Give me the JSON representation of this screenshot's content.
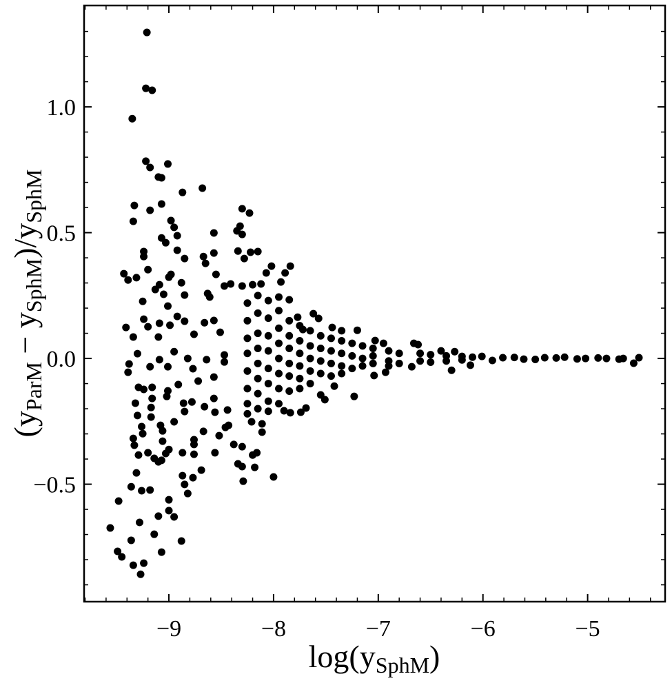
{
  "chart_data": {
    "type": "scatter",
    "color": "#000000",
    "xlabel": [
      "log(y",
      "SphM",
      ")"
    ],
    "ylabel": [
      "(y",
      "ParM",
      " − y",
      "SphM",
      ")/y",
      "SphM"
    ],
    "xlim": [
      -9.81,
      -4.26
    ],
    "ylim": [
      -0.967,
      1.403
    ],
    "xticks": [
      {
        "value": -9,
        "label": "−9"
      },
      {
        "value": -8,
        "label": "−8"
      },
      {
        "value": -7,
        "label": "−7"
      },
      {
        "value": -6,
        "label": "−6"
      },
      {
        "value": -5,
        "label": "−5"
      }
    ],
    "yticks": [
      {
        "value": -0.5,
        "label": "−0.5"
      },
      {
        "value": 0,
        "label": "0.0"
      },
      0.5,
      {
        "value": 1,
        "label": "1.0"
      }
    ],
    "xticks_minor": [
      -9.8,
      -9.6,
      -9.4,
      -9.2,
      -8.8,
      -8.6,
      -8.4,
      -8.2,
      -7.8,
      -7.6,
      -7.4,
      -7.2,
      -6.8,
      -6.6,
      -6.4,
      -6.2,
      -5.8,
      -5.6,
      -5.4,
      -5.2,
      -4.8,
      -4.6,
      -4.4
    ],
    "yticks_minor": [
      -0.9,
      -0.8,
      -0.7,
      -0.6,
      -0.4,
      -0.3,
      -0.2,
      -0.1,
      0.1,
      0.2,
      0.3,
      0.4,
      0.6,
      0.7,
      0.8,
      0.9,
      1.1,
      1.2,
      1.3
    ],
    "x": [
      -9.21,
      -9.22,
      -9.16,
      -9.35,
      -9.22,
      -9.18,
      -9.01,
      -9.1,
      -9.07,
      -9.33,
      -9.07,
      -9.18,
      -8.87,
      -8.68,
      -9.34,
      -8.98,
      -8.95,
      -9.24,
      -9.24,
      -9.07,
      -9.03,
      -8.92,
      -8.92,
      -8.85,
      -8.67,
      -8.57,
      -8.65,
      -8.3,
      -8.23,
      -8.32,
      -8.35,
      -8.3,
      -8.34,
      -8.28,
      -8.22,
      -8.15,
      -8.02,
      -8.07,
      -8.55,
      -8.57,
      -9.43,
      -9.39,
      -9.31,
      -9.2,
      -9.09,
      -9.0,
      -8.98,
      -8.88,
      -9.13,
      -9.05,
      -8.85,
      -8.63,
      -8.61,
      -8.47,
      -8.41,
      -9.01,
      -9.25,
      -9.41,
      -9.24,
      -9.2,
      -9.09,
      -8.99,
      -8.92,
      -8.85,
      -8.66,
      -8.57,
      -9.34,
      -9.1,
      -8.76,
      -8.51,
      -9.3,
      -9.09,
      -8.95,
      -8.82,
      -8.64,
      -8.47,
      -9.38,
      -9.18,
      -9.01,
      -9.39,
      -8.77,
      -8.57,
      -8.47,
      -9.29,
      -9.24,
      -9.16,
      -9.01,
      -9.02,
      -9.16,
      -8.91,
      -8.72,
      -8.57,
      -9.32,
      -9.3,
      -9.17,
      -9.17,
      -8.86,
      -8.78,
      -8.66,
      -8.56,
      -8.44,
      -9.26,
      -9.08,
      -8.95,
      -8.85,
      -8.43,
      -9.34,
      -9.33,
      -9.25,
      -9.06,
      -9.06,
      -8.76,
      -8.67,
      -8.52,
      -8.46,
      -9.29,
      -9.2,
      -9.14,
      -9.1,
      -9.07,
      -9.03,
      -9.0,
      -8.87,
      -8.76,
      -8.76,
      -8.56,
      -8.38,
      -8.3,
      -8.34,
      -8.3,
      -8.18,
      -8.2,
      -8.16,
      -8.29,
      -8.0,
      -9.31,
      -9.36,
      -9.26,
      -9.18,
      -8.87,
      -8.85,
      -8.82,
      -8.77,
      -8.69,
      -9.48,
      -9.0,
      -8.95,
      -9.1,
      -9.0,
      -9.28,
      -9.56,
      -9.14,
      -9.36,
      -8.88,
      -9.49,
      -9.07,
      -9.45,
      -9.24,
      -9.34,
      -9.27,
      -8.3,
      -8.2,
      -8.12,
      -7.93,
      -7.89,
      -7.84,
      -7.95,
      -7.85,
      -7.77,
      -7.72,
      -7.62,
      -7.57,
      -7.44,
      -7.35,
      -7.2,
      -7.03,
      -6.95,
      -6.66,
      -6.62,
      -6.4,
      -6.27,
      -8.11,
      -8.11,
      -8.21,
      -7.9,
      -7.84,
      -7.74,
      -7.69,
      -7.55,
      -7.51,
      -7.42,
      -7.23,
      -7.04,
      -6.93,
      -6.68,
      -6.3,
      -6.12,
      -4.51,
      -4.56,
      -4.66,
      -4.82,
      -5.02,
      -5.22,
      -5.41,
      -5.61,
      -5.81,
      -6.01,
      -5.91,
      -8.25,
      -8.25,
      -8.25,
      -8.25,
      -8.25,
      -8.25,
      -8.25,
      -8.25,
      -8.15,
      -8.15,
      -8.15,
      -8.15,
      -8.15,
      -8.15,
      -8.15,
      -8.15,
      -8.05,
      -8.05,
      -8.05,
      -8.05,
      -8.05,
      -8.05,
      -8.05,
      -8.05,
      -7.95,
      -7.95,
      -7.95,
      -7.95,
      -7.95,
      -7.95,
      -7.95,
      -7.85,
      -7.85,
      -7.85,
      -7.85,
      -7.85,
      -7.85,
      -7.75,
      -7.75,
      -7.75,
      -7.75,
      -7.75,
      -7.75,
      -7.65,
      -7.65,
      -7.65,
      -7.65,
      -7.65,
      -7.55,
      -7.55,
      -7.55,
      -7.55,
      -7.45,
      -7.45,
      -7.45,
      -7.45,
      -7.35,
      -7.35,
      -7.35,
      -7.35,
      -7.25,
      -7.25,
      -7.25,
      -7.15,
      -7.15,
      -7.15,
      -7.05,
      -7.05,
      -7.05,
      -6.9,
      -6.9,
      -6.9,
      -6.8,
      -6.8,
      -6.6,
      -6.6,
      -6.5,
      -6.5,
      -6.35,
      -6.35,
      -6.2,
      -6.2,
      -6.1,
      -5.7,
      -5.5,
      -5.3,
      -5.1,
      -4.9,
      -4.7
    ],
    "values": [
      1.296,
      1.074,
      1.066,
      0.953,
      0.784,
      0.759,
      0.773,
      0.721,
      0.718,
      0.608,
      0.614,
      0.589,
      0.66,
      0.677,
      0.545,
      0.548,
      0.521,
      0.425,
      0.405,
      0.479,
      0.46,
      0.488,
      0.43,
      0.397,
      0.405,
      0.499,
      0.378,
      0.595,
      0.578,
      0.526,
      0.507,
      0.493,
      0.427,
      0.397,
      0.422,
      0.425,
      0.367,
      0.34,
      0.334,
      0.419,
      0.337,
      0.312,
      0.321,
      0.353,
      0.293,
      0.323,
      0.334,
      0.301,
      0.274,
      0.255,
      0.252,
      0.258,
      0.244,
      0.288,
      0.296,
      0.208,
      0.227,
      0.123,
      0.156,
      0.126,
      0.14,
      0.132,
      0.167,
      0.148,
      0.142,
      0.151,
      0.085,
      0.085,
      0.096,
      0.104,
      0.019,
      -0.005,
      0.027,
      0.0,
      -0.005,
      0.014,
      -0.022,
      -0.033,
      -0.033,
      -0.055,
      -0.041,
      -0.074,
      -0.014,
      -0.115,
      -0.123,
      -0.115,
      -0.129,
      -0.151,
      -0.159,
      -0.104,
      -0.09,
      -0.159,
      -0.178,
      -0.227,
      -0.195,
      -0.233,
      -0.178,
      -0.173,
      -0.192,
      -0.214,
      -0.205,
      -0.271,
      -0.266,
      -0.252,
      -0.211,
      -0.266,
      -0.318,
      -0.345,
      -0.299,
      -0.329,
      -0.288,
      -0.323,
      -0.29,
      -0.307,
      -0.274,
      -0.384,
      -0.375,
      -0.397,
      -0.411,
      -0.405,
      -0.378,
      -0.362,
      -0.375,
      -0.342,
      -0.381,
      -0.375,
      -0.342,
      -0.351,
      -0.419,
      -0.43,
      -0.433,
      -0.384,
      -0.375,
      -0.488,
      -0.471,
      -0.455,
      -0.51,
      -0.526,
      -0.523,
      -0.466,
      -0.501,
      -0.537,
      -0.474,
      -0.444,
      -0.567,
      -0.562,
      -0.63,
      -0.627,
      -0.605,
      -0.652,
      -0.674,
      -0.699,
      -0.723,
      -0.726,
      -0.767,
      -0.77,
      -0.789,
      -0.814,
      -0.822,
      -0.858,
      0.288,
      0.293,
      0.296,
      0.304,
      0.34,
      0.367,
      0.244,
      0.233,
      0.164,
      0.115,
      0.178,
      0.159,
      0.123,
      0.11,
      0.112,
      0.071,
      0.06,
      0.06,
      0.055,
      0.03,
      0.027,
      -0.26,
      -0.293,
      -0.252,
      -0.208,
      -0.216,
      -0.214,
      -0.197,
      -0.145,
      -0.164,
      -0.11,
      -0.151,
      -0.068,
      -0.055,
      -0.033,
      -0.047,
      -0.027,
      0.003,
      -0.019,
      0.0,
      0.0,
      0.0,
      0.005,
      0.003,
      -0.003,
      0.003,
      0.008,
      -0.008,
      0.22,
      0.15,
      0.08,
      0.02,
      -0.05,
      -0.12,
      -0.18,
      -0.22,
      0.25,
      0.18,
      0.1,
      0.04,
      -0.02,
      -0.08,
      -0.14,
      -0.2,
      0.23,
      0.16,
      0.09,
      0.03,
      -0.04,
      -0.1,
      -0.17,
      -0.21,
      0.19,
      0.12,
      0.06,
      0.0,
      -0.06,
      -0.12,
      -0.18,
      0.15,
      0.09,
      0.04,
      -0.02,
      -0.07,
      -0.13,
      0.13,
      0.07,
      0.02,
      -0.03,
      -0.08,
      -0.12,
      0.11,
      0.05,
      0.0,
      -0.05,
      -0.1,
      0.09,
      0.04,
      -0.01,
      -0.06,
      0.08,
      0.03,
      -0.02,
      -0.07,
      0.07,
      0.02,
      -0.03,
      -0.06,
      0.06,
      0.01,
      -0.04,
      0.05,
      0.0,
      -0.03,
      0.04,
      0.01,
      -0.02,
      0.03,
      -0.01,
      -0.03,
      0.02,
      -0.02,
      0.02,
      -0.01,
      0.015,
      -0.015,
      0.01,
      -0.01,
      0.008,
      -0.006,
      0.005,
      0.004,
      -0.004,
      0.002,
      -0.002,
      0.002,
      -0.003
    ]
  }
}
